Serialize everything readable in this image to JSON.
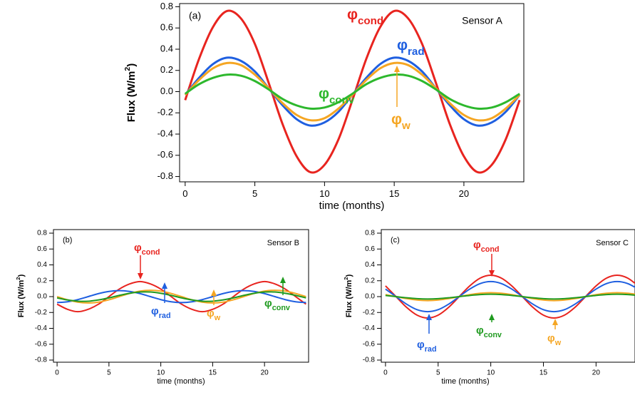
{
  "chart_data": [
    {
      "type": "line",
      "title": "(a)",
      "subtitle": "Sensor A",
      "xlabel": "time (months)",
      "ylabel": "Flux (W/m",
      "ylabel_sup": "2",
      "ylabel_end": ")",
      "x": [
        0,
        1,
        2,
        3,
        4,
        5,
        6,
        7,
        8,
        9,
        10,
        11,
        12,
        13,
        14,
        15,
        16,
        17,
        18,
        19,
        20,
        21,
        22,
        23,
        24
      ],
      "xlim": [
        -0.4,
        24.3
      ],
      "xticks": [
        0,
        5,
        10,
        15,
        20
      ],
      "ylim": [
        -0.85,
        0.83
      ],
      "yticks": [
        -0.8,
        -0.6,
        -0.4,
        -0.2,
        {
          "value": 0,
          "label": "0.0"
        },
        0.2,
        0.4,
        0.6,
        0.8
      ],
      "series": [
        {
          "name": "φ",
          "subscript": "cond",
          "color": "#e8241f",
          "values": [
            -0.08,
            0.31,
            0.61,
            0.76,
            0.69,
            0.45,
            0.08,
            -0.31,
            -0.61,
            -0.76,
            -0.69,
            -0.45,
            -0.08,
            0.31,
            0.61,
            0.76,
            0.69,
            0.45,
            0.08,
            -0.31,
            -0.61,
            -0.76,
            -0.69,
            -0.45,
            -0.08
          ]
        },
        {
          "name": "φ",
          "subscript": "rad",
          "color": "#1f5fe0",
          "values": [
            -0.03,
            0.13,
            0.26,
            0.32,
            0.29,
            0.19,
            0.03,
            -0.13,
            -0.26,
            -0.32,
            -0.29,
            -0.19,
            -0.03,
            0.13,
            0.26,
            0.32,
            0.29,
            0.19,
            0.03,
            -0.13,
            -0.26,
            -0.32,
            -0.29,
            -0.19,
            -0.03
          ]
        },
        {
          "name": "φ",
          "subscript": "w",
          "color": "#f5a623",
          "values": [
            -0.03,
            0.11,
            0.22,
            0.27,
            0.25,
            0.16,
            0.03,
            -0.11,
            -0.22,
            -0.27,
            -0.25,
            -0.16,
            -0.03,
            0.11,
            0.22,
            0.27,
            0.25,
            0.16,
            0.03,
            -0.11,
            -0.22,
            -0.27,
            -0.25,
            -0.16,
            -0.03
          ]
        },
        {
          "name": "φ",
          "subscript": "conv",
          "color": "#2db82d",
          "values": [
            -0.02,
            0.07,
            0.13,
            0.16,
            0.15,
            0.1,
            0.02,
            -0.07,
            -0.13,
            -0.16,
            -0.15,
            -0.1,
            -0.02,
            0.07,
            0.13,
            0.16,
            0.15,
            0.1,
            0.02,
            -0.07,
            -0.13,
            -0.16,
            -0.15,
            -0.1,
            -0.02
          ]
        }
      ]
    },
    {
      "type": "line",
      "title": "(b)",
      "subtitle": "Sensor B",
      "xlabel": "time (months)",
      "ylabel": "Flux (W/m",
      "ylabel_sup": "2",
      "ylabel_end": ")",
      "x": [
        0,
        1,
        2,
        3,
        4,
        5,
        6,
        7,
        8,
        9,
        10,
        11,
        12,
        13,
        14,
        15,
        16,
        17,
        18,
        19,
        20,
        21,
        22,
        23,
        24
      ],
      "xlim": [
        -0.35,
        24.25
      ],
      "xticks": [
        0,
        5,
        10,
        15,
        20
      ],
      "ylim": [
        -0.827,
        0.845
      ],
      "yticks": [
        -0.8,
        -0.6,
        -0.4,
        -0.2,
        {
          "value": 0,
          "label": "0.0"
        },
        0.2,
        0.4,
        0.6,
        0.8
      ],
      "series": [
        {
          "name": "φ",
          "subscript": "cond",
          "color": "#e8241f",
          "values": [
            -0.095,
            -0.16,
            -0.19,
            -0.16,
            -0.095,
            0,
            0.095,
            0.16,
            0.19,
            0.16,
            0.095,
            0,
            -0.095,
            -0.16,
            -0.19,
            -0.16,
            -0.095,
            0,
            0.095,
            0.16,
            0.19,
            0.16,
            0.095,
            0,
            -0.095
          ]
        },
        {
          "name": "φ",
          "subscript": "rad",
          "color": "#1f5fe0",
          "values": [
            -0.075,
            -0.065,
            -0.038,
            0,
            0.038,
            0.065,
            0.075,
            0.065,
            0.038,
            0,
            -0.038,
            -0.065,
            -0.075,
            -0.065,
            -0.038,
            0,
            0.038,
            0.065,
            0.075,
            0.065,
            0.038,
            0,
            -0.038,
            -0.065,
            -0.075
          ]
        },
        {
          "name": "φ",
          "subscript": "w",
          "color": "#f5a623",
          "values": [
            0,
            -0.04,
            -0.07,
            -0.08,
            -0.07,
            -0.04,
            0,
            0.04,
            0.07,
            0.08,
            0.07,
            0.04,
            0,
            -0.04,
            -0.07,
            -0.08,
            -0.07,
            -0.04,
            0,
            0.04,
            0.07,
            0.08,
            0.07,
            0.04,
            0
          ]
        },
        {
          "name": "φ",
          "subscript": "conv",
          "color": "#1f9a1f",
          "values": [
            -0.016,
            -0.042,
            -0.058,
            -0.058,
            -0.042,
            -0.016,
            0.016,
            0.042,
            0.058,
            0.058,
            0.042,
            0.016,
            -0.016,
            -0.042,
            -0.058,
            -0.058,
            -0.042,
            -0.016,
            0.016,
            0.042,
            0.058,
            0.058,
            0.042,
            0.016,
            -0.016
          ]
        }
      ]
    },
    {
      "type": "line",
      "title": "(c)",
      "subtitle": "Sensor C",
      "xlabel": "time (months)",
      "ylabel": "Flux (W/m",
      "ylabel_sup": "2",
      "ylabel_end": ")",
      "x": [
        0,
        1,
        2,
        3,
        4,
        5,
        6,
        7,
        8,
        9,
        10,
        11,
        12,
        13,
        14,
        15,
        16,
        17,
        18,
        19,
        20,
        21,
        22,
        23,
        24
      ],
      "xlim": [
        -0.4,
        23.7
      ],
      "xticks": [
        0,
        5,
        10,
        15,
        20
      ],
      "ylim": [
        -0.827,
        0.845
      ],
      "yticks": [
        -0.8,
        -0.6,
        -0.4,
        -0.2,
        {
          "value": 0,
          "label": "0.0"
        },
        0.2,
        0.4,
        0.6,
        0.8
      ],
      "series": [
        {
          "name": "φ",
          "subscript": "cond",
          "color": "#e8241f",
          "values": [
            0.135,
            0,
            -0.135,
            -0.234,
            -0.27,
            -0.234,
            -0.135,
            0,
            0.135,
            0.234,
            0.27,
            0.234,
            0.135,
            0,
            -0.135,
            -0.234,
            -0.27,
            -0.234,
            -0.135,
            0,
            0.135,
            0.234,
            0.27,
            0.234,
            0.135
          ]
        },
        {
          "name": "φ",
          "subscript": "rad",
          "color": "#1f5fe0",
          "values": [
            0.095,
            0,
            -0.095,
            -0.165,
            -0.19,
            -0.165,
            -0.095,
            0,
            0.095,
            0.165,
            0.19,
            0.165,
            0.095,
            0,
            -0.095,
            -0.165,
            -0.19,
            -0.165,
            -0.095,
            0,
            0.095,
            0.165,
            0.19,
            0.165,
            0.095
          ]
        },
        {
          "name": "φ",
          "subscript": "w",
          "color": "#f5a623",
          "values": [
            0.025,
            0,
            -0.025,
            -0.043,
            -0.05,
            -0.043,
            -0.025,
            0,
            0.025,
            0.043,
            0.05,
            0.043,
            0.025,
            0,
            -0.025,
            -0.043,
            -0.05,
            -0.043,
            -0.025,
            0,
            0.025,
            0.043,
            0.05,
            0.043,
            0.025
          ]
        },
        {
          "name": "φ",
          "subscript": "conv",
          "color": "#1f9a1f",
          "values": [
            0.015,
            0,
            -0.015,
            -0.026,
            -0.03,
            -0.026,
            -0.015,
            0,
            0.015,
            0.026,
            0.03,
            0.026,
            0.015,
            0,
            -0.015,
            -0.026,
            -0.03,
            -0.026,
            -0.015,
            0,
            0.015,
            0.026,
            0.03,
            0.026,
            0.015
          ]
        }
      ]
    }
  ]
}
